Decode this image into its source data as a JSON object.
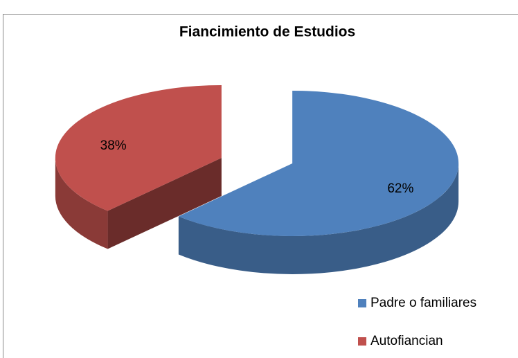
{
  "chart_data": {
    "type": "pie3d",
    "title": "Fiancimiento de Estudios",
    "categories": [
      "Padre o familiares",
      "Autofiancian"
    ],
    "values": [
      62,
      38
    ],
    "value_labels": [
      "62%",
      "38%"
    ],
    "colors": [
      "#4f81bd",
      "#c0504d"
    ],
    "legend": "bottom-right"
  }
}
